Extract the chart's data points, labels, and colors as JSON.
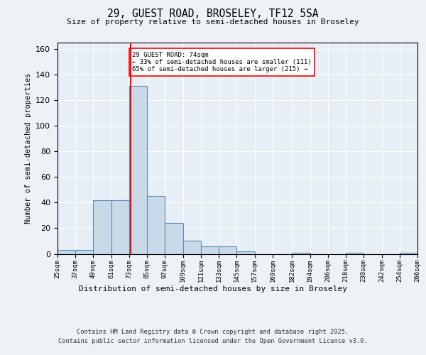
{
  "title1": "29, GUEST ROAD, BROSELEY, TF12 5SA",
  "title2": "Size of property relative to semi-detached houses in Broseley",
  "xlabel": "Distribution of semi-detached houses by size in Broseley",
  "ylabel": "Number of semi-detached properties",
  "bar_color": "#c9d9e8",
  "bar_edge_color": "#5b8db8",
  "vline_color": "red",
  "vline_x": 74,
  "annotation_text": "29 GUEST ROAD: 74sqm\n← 33% of semi-detached houses are smaller (111)\n65% of semi-detached houses are larger (215) →",
  "bin_edges": [
    25,
    37,
    49,
    61,
    73,
    85,
    97,
    109,
    121,
    133,
    145,
    157,
    169,
    182,
    194,
    206,
    218,
    230,
    242,
    254,
    266
  ],
  "bar_data": [
    3,
    3,
    42,
    42,
    131,
    45,
    24,
    10,
    6,
    6,
    2,
    0,
    0,
    1,
    0,
    0,
    1,
    0,
    0,
    1
  ],
  "ylim": [
    0,
    165
  ],
  "yticks": [
    0,
    20,
    40,
    60,
    80,
    100,
    120,
    140,
    160
  ],
  "footer1": "Contains HM Land Registry data © Crown copyright and database right 2025.",
  "footer2": "Contains public sector information licensed under the Open Government Licence v3.0.",
  "background_color": "#eef2f7",
  "plot_bg_color": "#e8eef6"
}
